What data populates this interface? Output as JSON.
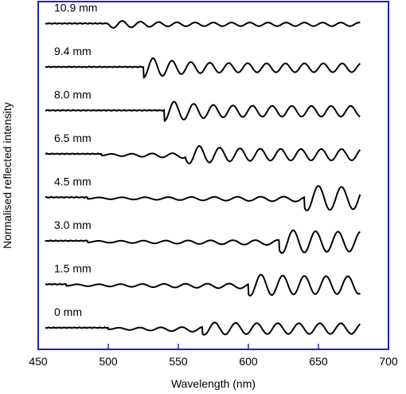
{
  "chart_data": {
    "type": "line",
    "xlabel": "Wavelength (nm)",
    "ylabel": "Normalised reflected intensity",
    "xlim": [
      450,
      700
    ],
    "x_ticks": [
      450,
      500,
      550,
      600,
      650,
      700
    ],
    "x_range": [
      455,
      680
    ],
    "frame_color": "#2222bb",
    "line_color": "#000000",
    "grid": false,
    "series": [
      {
        "name": "10.9 mm",
        "offset": 7,
        "edge": 500,
        "peak": 510,
        "amp": 0.2,
        "tail": 0.1,
        "start_wl": 500,
        "period": 13.0
      },
      {
        "name": "9.4 mm",
        "offset": 6,
        "edge": 525,
        "peak": 532,
        "amp": 0.55,
        "tail": 0.25,
        "start_wl": 525,
        "period": 13.5
      },
      {
        "name": "8.0 mm",
        "offset": 5,
        "edge": 540,
        "peak": 547,
        "amp": 0.55,
        "tail": 0.3,
        "start_wl": 540,
        "period": 14.0
      },
      {
        "name": "6.5 mm",
        "offset": 4,
        "edge": 555,
        "peak": 565,
        "amp": 0.5,
        "tail": 0.32,
        "start_wl": 495,
        "period": 14.5
      },
      {
        "name": "4.5 mm",
        "offset": 3,
        "edge": 640,
        "peak": 650,
        "amp": 0.7,
        "tail": 0.6,
        "start_wl": 485,
        "period": 16.5
      },
      {
        "name": "3.0 mm",
        "offset": 2,
        "edge": 622,
        "peak": 632,
        "amp": 0.65,
        "tail": 0.55,
        "start_wl": 485,
        "period": 16.0
      },
      {
        "name": "1.5 mm",
        "offset": 1,
        "edge": 600,
        "peak": 609,
        "amp": 0.6,
        "tail": 0.5,
        "start_wl": 470,
        "period": 15.5
      },
      {
        "name": "0 mm",
        "offset": 0,
        "edge": 567,
        "peak": 576,
        "amp": 0.35,
        "tail": 0.3,
        "start_wl": 500,
        "period": 15.0
      }
    ]
  }
}
